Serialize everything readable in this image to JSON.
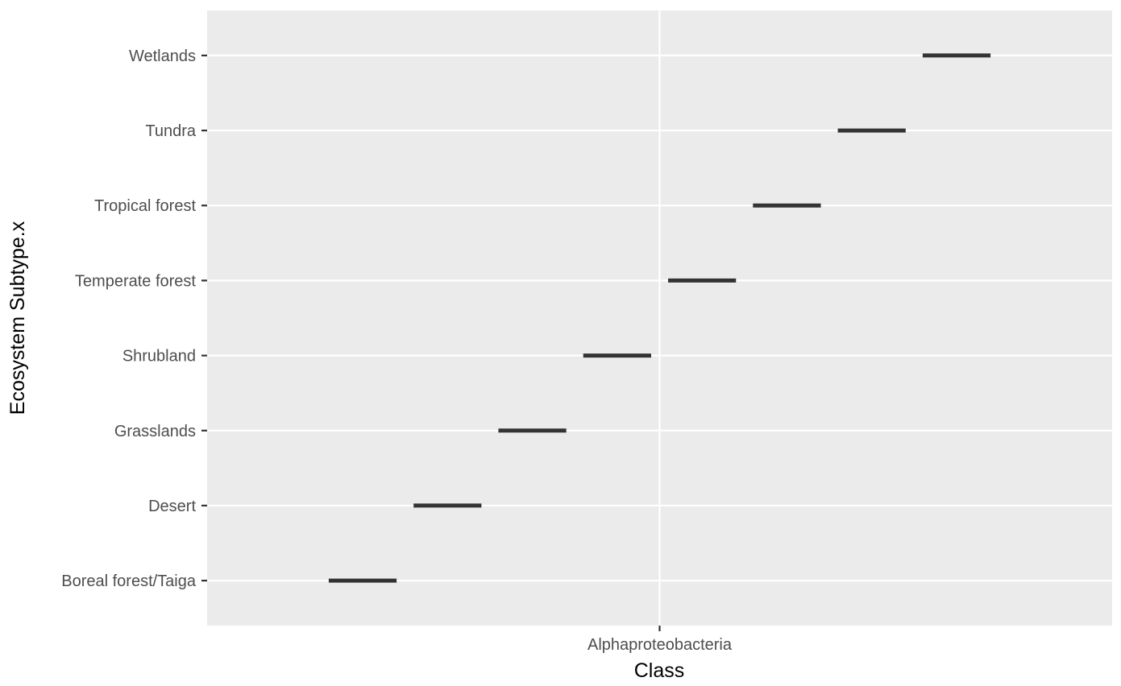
{
  "chart_data": {
    "type": "bar",
    "xlabel": "Class",
    "ylabel": "Ecosystem Subtype.x",
    "categories": [
      "Alphaproteobacteria"
    ],
    "groups": [
      "Boreal forest/Taiga",
      "Desert",
      "Grasslands",
      "Shrubland",
      "Temperate forest",
      "Tropical forest",
      "Tundra",
      "Wetlands"
    ],
    "dodge_width": 0.9,
    "grid": true,
    "legend": "none",
    "colors": {
      "panel": "#ebebeb",
      "grid": "#ffffff",
      "mark": "#333333",
      "tick_text": "#4d4d4d",
      "tick": "#333333",
      "title_text": "#000000"
    }
  }
}
